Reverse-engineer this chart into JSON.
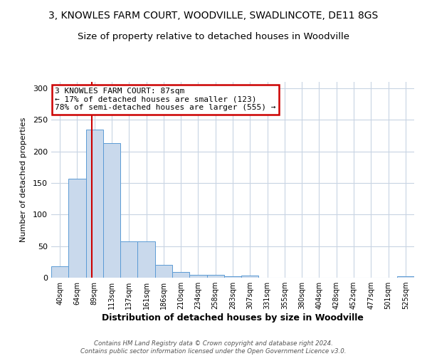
{
  "title": "3, KNOWLES FARM COURT, WOODVILLE, SWADLINCOTE, DE11 8GS",
  "subtitle": "Size of property relative to detached houses in Woodville",
  "xlabel": "Distribution of detached houses by size in Woodville",
  "ylabel": "Number of detached properties",
  "bin_labels": [
    "40sqm",
    "64sqm",
    "89sqm",
    "113sqm",
    "137sqm",
    "161sqm",
    "186sqm",
    "210sqm",
    "234sqm",
    "258sqm",
    "283sqm",
    "307sqm",
    "331sqm",
    "355sqm",
    "380sqm",
    "404sqm",
    "428sqm",
    "452sqm",
    "477sqm",
    "501sqm",
    "525sqm"
  ],
  "bar_heights": [
    18,
    157,
    234,
    213,
    57,
    57,
    20,
    9,
    5,
    4,
    2,
    3,
    0,
    0,
    0,
    0,
    0,
    0,
    0,
    0,
    2
  ],
  "bar_color": "#c9d9ec",
  "bar_edge_color": "#5b9bd5",
  "property_line_x": 1.85,
  "annotation_title": "3 KNOWLES FARM COURT: 87sqm",
  "annotation_line1": "← 17% of detached houses are smaller (123)",
  "annotation_line2": "78% of semi-detached houses are larger (555) →",
  "annotation_box_color": "#ffffff",
  "annotation_box_edge": "#cc0000",
  "vline_color": "#cc0000",
  "ylim": [
    0,
    310
  ],
  "yticks": [
    0,
    50,
    100,
    150,
    200,
    250,
    300
  ],
  "footer_line1": "Contains HM Land Registry data © Crown copyright and database right 2024.",
  "footer_line2": "Contains public sector information licensed under the Open Government Licence v3.0.",
  "background_color": "#ffffff",
  "grid_color": "#c8d4e3",
  "title_fontsize": 10,
  "subtitle_fontsize": 9.5
}
